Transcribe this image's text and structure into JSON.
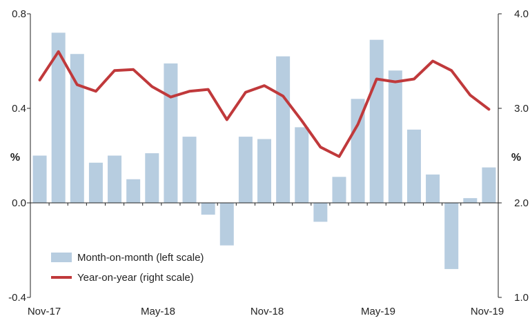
{
  "chart_data": {
    "type": "bar",
    "categories": [
      "Nov-17",
      "Dec-17",
      "Jan-18",
      "Feb-18",
      "Mar-18",
      "Apr-18",
      "May-18",
      "Jun-18",
      "Jul-18",
      "Aug-18",
      "Sep-18",
      "Oct-18",
      "Nov-18",
      "Dec-18",
      "Jan-19",
      "Feb-19",
      "Mar-19",
      "Apr-19",
      "May-19",
      "Jun-19",
      "Jul-19",
      "Aug-19",
      "Sep-19",
      "Oct-19",
      "Nov-19"
    ],
    "x_tick_labels": [
      "Nov-17",
      "May-18",
      "Nov-18",
      "May-19",
      "Nov-19"
    ],
    "series": [
      {
        "name": "Month-on-month (left scale)",
        "type": "bar",
        "axis": "left",
        "color": "#b7cde0",
        "values": [
          0.2,
          0.72,
          0.63,
          0.17,
          0.2,
          0.1,
          0.21,
          0.59,
          0.28,
          -0.05,
          -0.18,
          0.28,
          0.27,
          0.62,
          0.32,
          -0.08,
          0.11,
          0.44,
          0.69,
          0.56,
          0.31,
          0.12,
          -0.28,
          0.02,
          0.15
        ]
      },
      {
        "name": "Year-on-year (right scale)",
        "type": "line",
        "axis": "right",
        "color": "#c0393b",
        "values": [
          3.3,
          3.6,
          3.25,
          3.18,
          3.4,
          3.41,
          3.23,
          3.12,
          3.18,
          3.2,
          2.88,
          3.17,
          3.24,
          3.13,
          2.87,
          2.59,
          2.49,
          2.83,
          3.31,
          3.28,
          3.31,
          3.5,
          3.4,
          3.14,
          2.99
        ]
      }
    ],
    "y_left": {
      "label": "%",
      "ylim": [
        -0.4,
        0.8
      ],
      "ticks": [
        "0.8",
        "0.4",
        "0.0",
        "-0.4"
      ]
    },
    "y_right": {
      "label": "%",
      "ylim": [
        1.0,
        4.0
      ],
      "ticks": [
        "4.0",
        "3.0",
        "2.0",
        "1.0"
      ]
    },
    "legend": {
      "position": "bottom-left"
    },
    "grid": false
  }
}
